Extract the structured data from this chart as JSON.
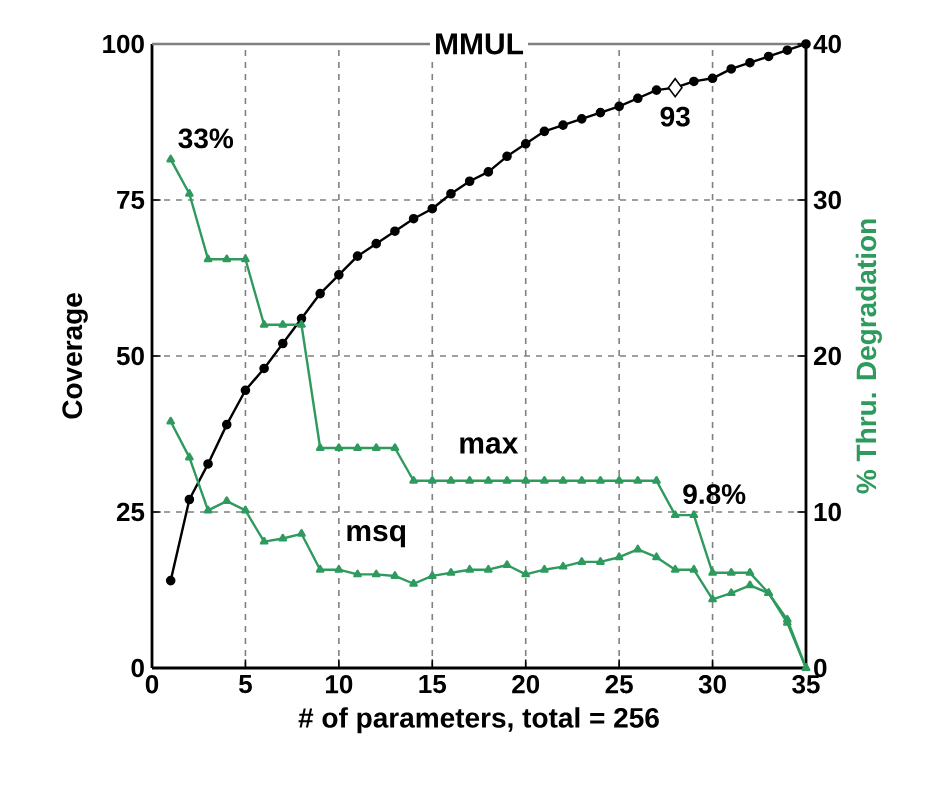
{
  "chart_data": {
    "type": "line",
    "title": "MMUL",
    "xlabel": "# of parameters, total = 256",
    "ylabel": "Coverage",
    "y2label": "% Thru. Degradation",
    "x": [
      1,
      2,
      3,
      4,
      5,
      6,
      7,
      8,
      9,
      10,
      11,
      12,
      13,
      14,
      15,
      16,
      17,
      18,
      19,
      20,
      21,
      22,
      23,
      24,
      25,
      26,
      27,
      28,
      29,
      30,
      31,
      32,
      33,
      34,
      35
    ],
    "series": [
      {
        "color": "#000000",
        "marker": "circle",
        "values": [
          14,
          27,
          32.7,
          39,
          44.5,
          48,
          52,
          56,
          60,
          63,
          66,
          68,
          70,
          72,
          73.6,
          76,
          78,
          79.5,
          82,
          84,
          86,
          87,
          88,
          89,
          90,
          91.3,
          92.6,
          93,
          94,
          94.5,
          96,
          97,
          98,
          99,
          100
        ],
        "value_labels": [
          null,
          null,
          null,
          null,
          null,
          null,
          null,
          null,
          null,
          null,
          null,
          null,
          null,
          null,
          null,
          null,
          null,
          null,
          null,
          null,
          null,
          null,
          null,
          null,
          null,
          null,
          null,
          "93",
          null,
          null,
          null,
          null,
          null,
          null,
          null
        ]
      },
      {
        "name": "max",
        "color": "#2e9a5e",
        "marker": "triangle",
        "axis": "y2",
        "values": [
          32.6,
          30.4,
          26.2,
          26.2,
          26.2,
          22,
          22,
          22,
          14.1,
          14.1,
          14.1,
          14.1,
          14.1,
          12,
          12,
          12,
          12,
          12,
          12,
          12,
          12,
          12,
          12,
          12,
          12,
          12,
          12,
          9.8,
          9.8,
          6.1,
          6.1,
          6.1,
          4.8,
          3.1,
          0
        ],
        "value_labels": [
          "33%",
          null,
          null,
          null,
          null,
          null,
          null,
          null,
          null,
          null,
          null,
          null,
          null,
          null,
          null,
          null,
          null,
          null,
          null,
          null,
          null,
          null,
          null,
          null,
          null,
          null,
          null,
          "9.8%",
          null,
          null,
          null,
          null,
          null,
          null,
          null
        ]
      },
      {
        "name": "msq",
        "color": "#2e9a5e",
        "marker": "triangle",
        "axis": "y2",
        "values": [
          15.8,
          13.5,
          10.1,
          10.7,
          10.1,
          8.1,
          8.3,
          8.6,
          6.3,
          6.3,
          6.0,
          6.0,
          5.9,
          5.4,
          5.9,
          6.1,
          6.3,
          6.3,
          6.6,
          6.0,
          6.3,
          6.5,
          6.8,
          6.8,
          7.1,
          7.6,
          7.1,
          6.3,
          6.3,
          4.4,
          4.8,
          5.3,
          4.8,
          2.9,
          0
        ]
      }
    ],
    "xlim": [
      0,
      35
    ],
    "xticks": [
      0,
      5,
      10,
      15,
      20,
      25,
      30,
      35
    ],
    "ylim": [
      0,
      100
    ],
    "yticks": [
      0,
      25,
      50,
      75,
      100
    ],
    "y2lim": [
      0,
      40
    ],
    "y2ticks": [
      0,
      10,
      20,
      30,
      40
    ],
    "grid": true,
    "line_style": "solid"
  }
}
